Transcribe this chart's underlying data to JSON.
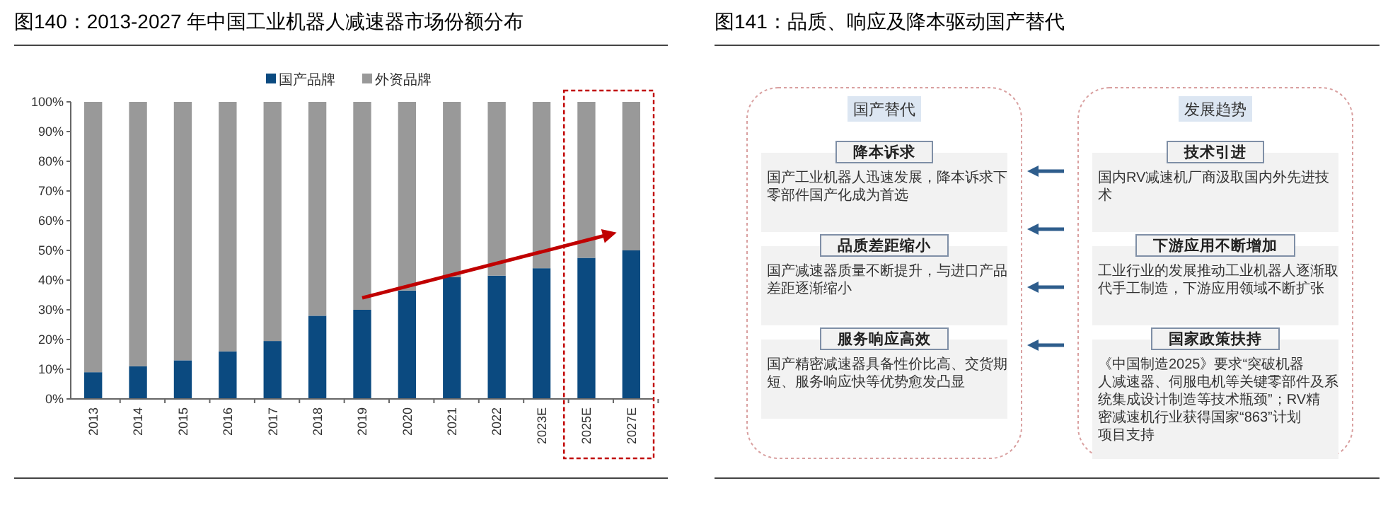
{
  "chart_data": [
    {
      "type": "bar",
      "title": "图140：2013-2027 年中国工业机器人减速器市场份额分布",
      "stacked": true,
      "legend": "top",
      "categories": [
        "2013",
        "2014",
        "2015",
        "2016",
        "2017",
        "2018",
        "2019",
        "2020",
        "2021",
        "2022",
        "2023E",
        "2025E",
        "2027E"
      ],
      "series": [
        {
          "name": "国产品牌",
          "color": "#0b4a80",
          "values": [
            9,
            11,
            13,
            16,
            19.5,
            28,
            30,
            36.5,
            41,
            41.5,
            44,
            47.5,
            50
          ]
        },
        {
          "name": "外资品牌",
          "color": "#999999",
          "values": [
            91,
            89,
            87,
            84,
            80.5,
            72,
            70,
            63.5,
            59,
            58.5,
            56,
            52.5,
            50
          ]
        }
      ],
      "ylim": [
        0,
        100
      ],
      "yticks": [
        {
          "value": 0,
          "label": "0%"
        },
        {
          "value": 10,
          "label": "10%"
        },
        {
          "value": 20,
          "label": "20%"
        },
        {
          "value": 30,
          "label": "30%"
        },
        {
          "value": 40,
          "label": "40%"
        },
        {
          "value": 50,
          "label": "50%"
        },
        {
          "value": 60,
          "label": "60%"
        },
        {
          "value": 70,
          "label": "70%"
        },
        {
          "value": 80,
          "label": "80%"
        },
        {
          "value": 90,
          "label": "90%"
        },
        {
          "value": 100,
          "label": "100%"
        }
      ]
    },
    {
      "type": "other",
      "title": "图141：品质、响应及降本驱动国产替代",
      "annotations": [
        "国产替代",
        "降本诉求",
        "国产工业机器人迅速发展，降本诉求下零部件国产化成为首选",
        "品质差距缩小",
        "国产减速器质量不断提升，与进口产品差距逐渐缩小",
        "服务响应高效",
        "国产精密减速器具备性价比高、交货期短、服务响应快等优势愈发凸显",
        "发展趋势",
        "技术引进",
        "国内RV减速机厂商汲取国内外先进技术",
        "下游应用不断增加",
        "工业行业的发展推动工业机器人逐渐取代手工制造，下游应用领域不断扩张",
        "国家政策扶持",
        "《中国制造2025》要求“突破机器人减速器、伺服电机等关键零部件及系统集成设计制造等技术瓶颈”；RV精密减速机行业获得国家“863”计划项目支持"
      ]
    }
  ]
}
